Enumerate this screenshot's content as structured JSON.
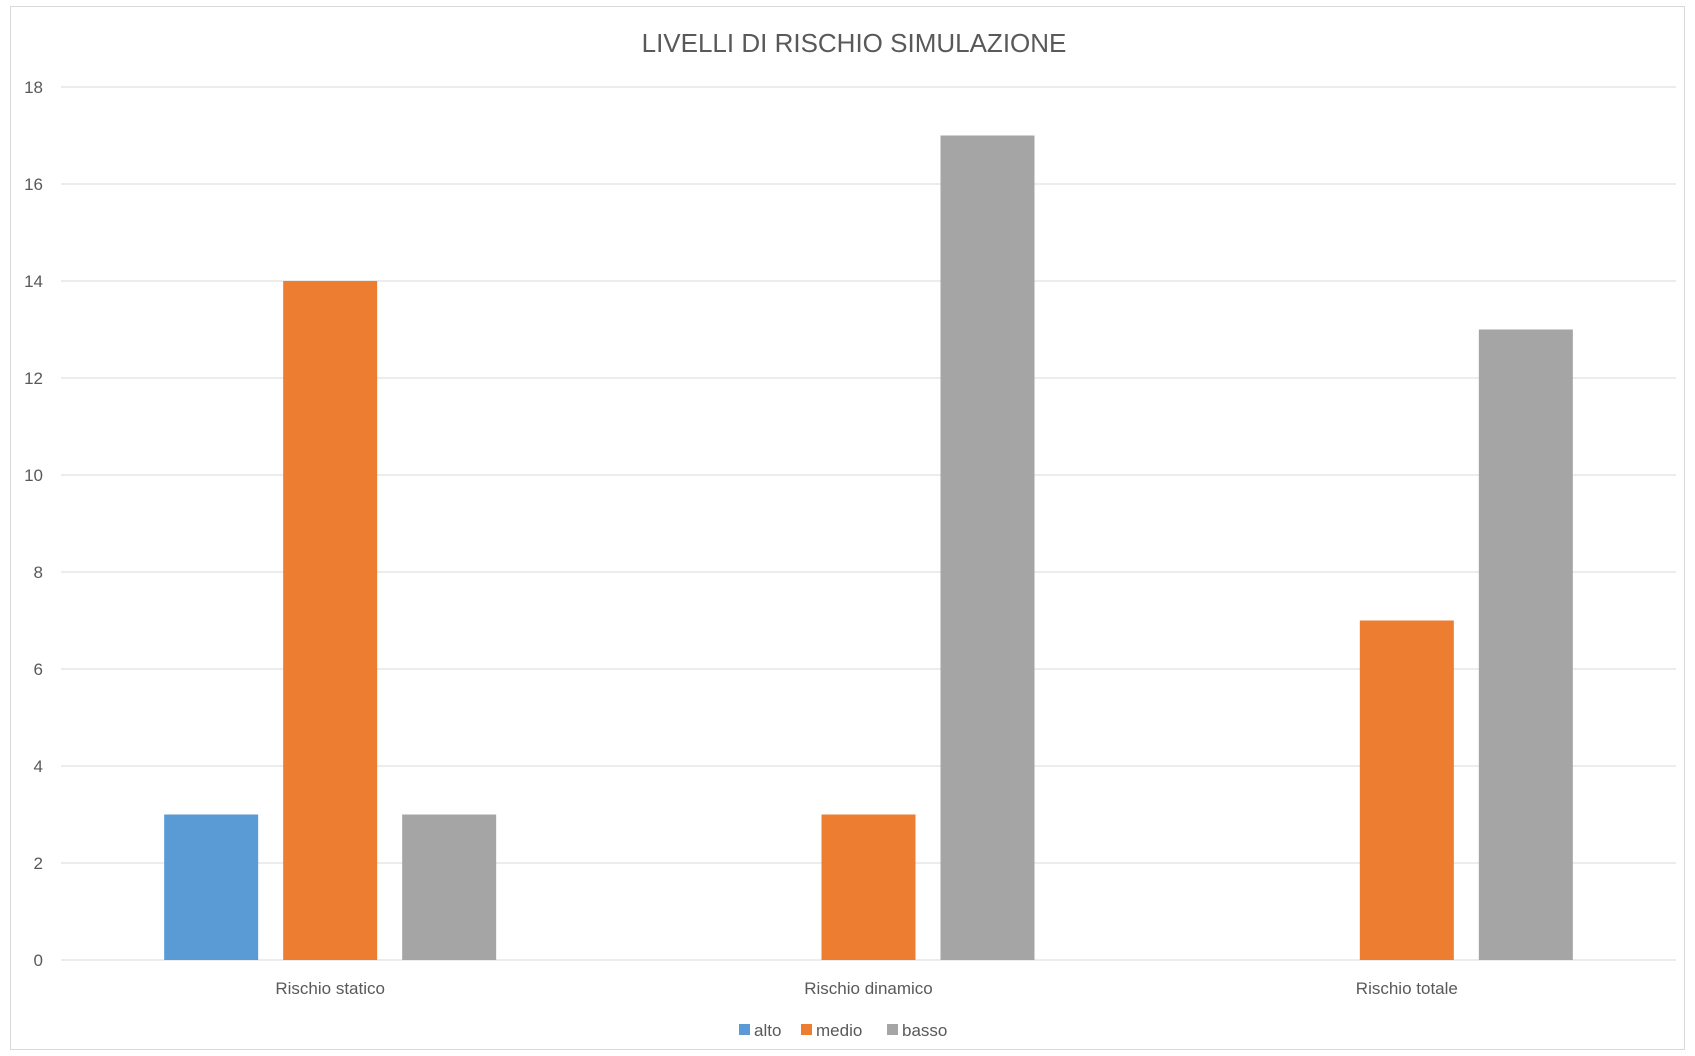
{
  "chart_data": {
    "type": "bar",
    "title": "LIVELLI DI RISCHIO SIMULAZIONE",
    "categories": [
      "Rischio statico",
      "Rischio dinamico",
      "Rischio totale"
    ],
    "series": [
      {
        "name": "alto",
        "color": "#5B9BD5",
        "values": [
          3,
          0,
          0
        ]
      },
      {
        "name": "medio",
        "color": "#ED7D31",
        "values": [
          14,
          3,
          7
        ]
      },
      {
        "name": "basso",
        "color": "#A5A5A5",
        "values": [
          3,
          17,
          13
        ]
      }
    ],
    "ylim": [
      0,
      18
    ],
    "yticks": [
      0,
      2,
      4,
      6,
      8,
      10,
      12,
      14,
      16,
      18
    ],
    "grid": true,
    "legend_position": "bottom",
    "xlabel": "",
    "ylabel": ""
  }
}
